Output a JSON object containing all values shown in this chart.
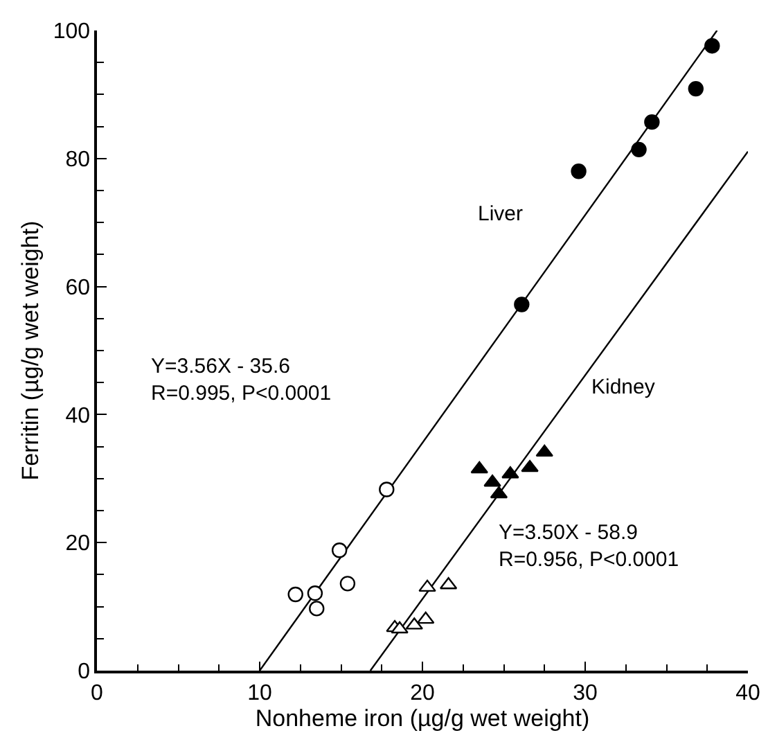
{
  "chart_data": {
    "type": "scatter",
    "xlabel": "Nonheme iron (µg/g wet weight)",
    "ylabel": "Ferritin (µg/g wet weight)",
    "xlim": [
      0,
      40
    ],
    "ylim": [
      0,
      100
    ],
    "xticks": [
      0,
      10,
      20,
      30,
      40
    ],
    "yticks": [
      0,
      20,
      40,
      60,
      80,
      100
    ],
    "series": [
      {
        "type": "line",
        "color": "#000000",
        "marker": "none",
        "line_style": "solid",
        "x": [
          10,
          38.1
        ],
        "values": [
          0,
          100
        ]
      },
      {
        "type": "line",
        "color": "#000000",
        "marker": "none",
        "line_style": "solid",
        "x": [
          16.8,
          40
        ],
        "values": [
          0,
          81.1
        ]
      },
      {
        "color": "#ffffff",
        "marker": "circle",
        "x": [
          12.2,
          13.4,
          13.5,
          14.9,
          15.4,
          17.8
        ],
        "values": [
          11.9,
          12.1,
          9.7,
          18.8,
          13.6,
          28.3
        ]
      },
      {
        "color": "#000000",
        "marker": "circle",
        "x": [
          26.1,
          29.6,
          33.3,
          34.1,
          36.8,
          37.8
        ],
        "values": [
          57.2,
          78.0,
          81.4,
          85.7,
          90.9,
          97.6
        ]
      },
      {
        "color": "#ffffff",
        "marker": "triangle",
        "x": [
          18.3,
          18.6,
          19.5,
          20.2,
          20.3,
          21.6
        ],
        "values": [
          6.7,
          6.5,
          7.1,
          8.0,
          13.0,
          13.4
        ]
      },
      {
        "color": "#000000",
        "marker": "triangle",
        "x": [
          23.5,
          24.3,
          24.7,
          25.4,
          26.6,
          27.5
        ],
        "values": [
          31.5,
          29.4,
          27.6,
          30.7,
          31.7,
          34.1
        ]
      }
    ],
    "annotations": [
      "Liver",
      "Kidney",
      "Y=3.56X - 35.6\nR=0.995, P<0.0001",
      "Y=3.50X - 58.9\nR=0.956, P<0.0001"
    ]
  }
}
